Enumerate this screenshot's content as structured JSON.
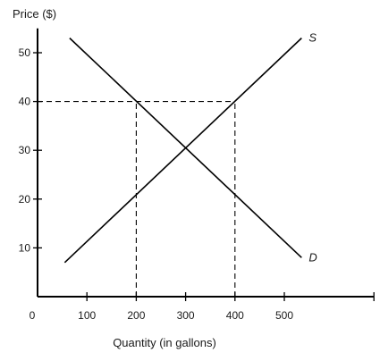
{
  "chart_data": {
    "type": "line",
    "title": "",
    "ylabel": "Price ($)",
    "xlabel": "Quantity (in gallons)",
    "origin_label": "0",
    "xticks": [
      100,
      200,
      300,
      400,
      500
    ],
    "yticks": [
      10,
      20,
      30,
      40,
      50
    ],
    "xlim": [
      0,
      600
    ],
    "ylim": [
      0,
      55
    ],
    "grid": false,
    "series": [
      {
        "name": "S",
        "x": [
          55,
          535
        ],
        "y": [
          7,
          53
        ]
      },
      {
        "name": "D",
        "x": [
          65,
          535
        ],
        "y": [
          53,
          8
        ]
      }
    ],
    "reference_lines": [
      {
        "x": [
          0,
          400
        ],
        "y": [
          40,
          40
        ]
      },
      {
        "x": [
          200,
          200
        ],
        "y": [
          0,
          40
        ]
      },
      {
        "x": [
          400,
          400
        ],
        "y": [
          0,
          40
        ]
      }
    ]
  }
}
